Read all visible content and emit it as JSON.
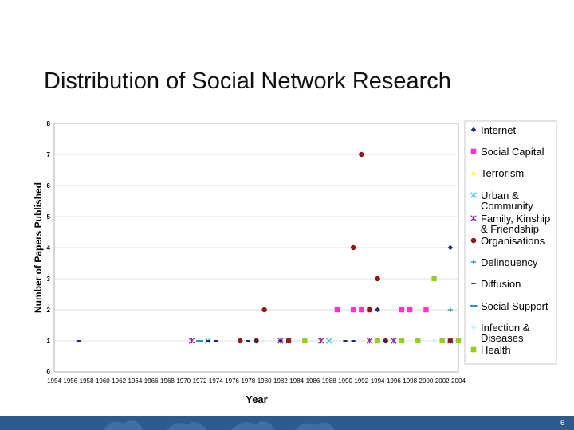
{
  "slide": {
    "title": "Distribution of Social Network Research",
    "page_number": "6"
  },
  "chart_data": {
    "type": "scatter",
    "title": "",
    "xlabel": "Year",
    "ylabel": "Number of Papers Published",
    "xlim": [
      1954,
      2004
    ],
    "ylim": [
      0,
      8
    ],
    "x_ticks": [
      "1954",
      "1956",
      "1958",
      "1960",
      "1962",
      "1964",
      "1966",
      "1968",
      "1970",
      "1972",
      "1974",
      "1976",
      "1978",
      "1980",
      "1982",
      "1984",
      "1986",
      "1988",
      "1990",
      "1992",
      "1994",
      "1996",
      "1998",
      "2000",
      "2002",
      "2004"
    ],
    "y_ticks": [
      "0",
      "1",
      "2",
      "3",
      "4",
      "5",
      "6",
      "7",
      "8"
    ],
    "grid": "horizontal",
    "legend_position": "right",
    "series": [
      {
        "name": "Internet",
        "color": "#1f2a7a",
        "marker": "diamond",
        "points": [
          [
            1994,
            2
          ],
          [
            2003,
            4
          ],
          [
            2003,
            1
          ]
        ]
      },
      {
        "name": "Social Capital",
        "color": "#ff33cc",
        "marker": "square",
        "points": [
          [
            1989,
            2
          ],
          [
            1991,
            2
          ],
          [
            1992,
            2
          ],
          [
            1993,
            2
          ],
          [
            1997,
            2
          ],
          [
            1998,
            2
          ],
          [
            2000,
            2
          ]
        ]
      },
      {
        "name": "Terrorism",
        "color": "#ffff33",
        "marker": "triangle",
        "points": [
          [
            2002,
            1
          ],
          [
            2003,
            1
          ]
        ]
      },
      {
        "name": "Urban & Community",
        "color": "#33ccee",
        "marker": "x",
        "points": [
          [
            1973,
            1
          ],
          [
            1988,
            1
          ],
          [
            1996,
            1
          ]
        ]
      },
      {
        "name": "Family, Kinship & Friendship",
        "color": "#8a2c9e",
        "marker": "asterisk",
        "points": [
          [
            1971,
            1
          ],
          [
            1982,
            1
          ],
          [
            1983,
            1
          ],
          [
            1987,
            1
          ],
          [
            1993,
            1
          ],
          [
            1996,
            1
          ],
          [
            2003,
            1
          ]
        ]
      },
      {
        "name": "Organisations",
        "color": "#8b1a1a",
        "marker": "circle",
        "points": [
          [
            1980,
            2
          ],
          [
            1977,
            1
          ],
          [
            1979,
            1
          ],
          [
            1983,
            1
          ],
          [
            1991,
            4
          ],
          [
            1992,
            7
          ],
          [
            1993,
            2
          ],
          [
            1994,
            3
          ],
          [
            1995,
            1
          ],
          [
            2003,
            1
          ]
        ]
      },
      {
        "name": "Delinquency",
        "color": "#2e8a8a",
        "marker": "plus",
        "points": [
          [
            2003,
            2
          ]
        ]
      },
      {
        "name": "Diffusion",
        "color": "#1f2a7a",
        "marker": "dash",
        "points": [
          [
            1957,
            1
          ],
          [
            1973,
            1
          ],
          [
            1974,
            1
          ],
          [
            1978,
            1
          ],
          [
            1979,
            1
          ],
          [
            1982,
            1
          ],
          [
            1990,
            1
          ],
          [
            1991,
            1
          ],
          [
            1994,
            2
          ],
          [
            1995,
            1
          ]
        ]
      },
      {
        "name": "Social Support",
        "color": "#2b8fd0",
        "marker": "hline",
        "points": [
          [
            1972,
            1
          ]
        ]
      },
      {
        "name": "Infection & Diseases",
        "color": "#c8f2fa",
        "marker": "diamond",
        "points": [
          [
            1994,
            1
          ],
          [
            2001,
            1
          ]
        ]
      },
      {
        "name": "Health",
        "color": "#99cc22",
        "marker": "square",
        "points": [
          [
            1985,
            1
          ],
          [
            1994,
            1
          ],
          [
            1997,
            1
          ],
          [
            1999,
            1
          ],
          [
            2001,
            3
          ],
          [
            2002,
            1
          ],
          [
            2004,
            1
          ]
        ]
      }
    ]
  }
}
